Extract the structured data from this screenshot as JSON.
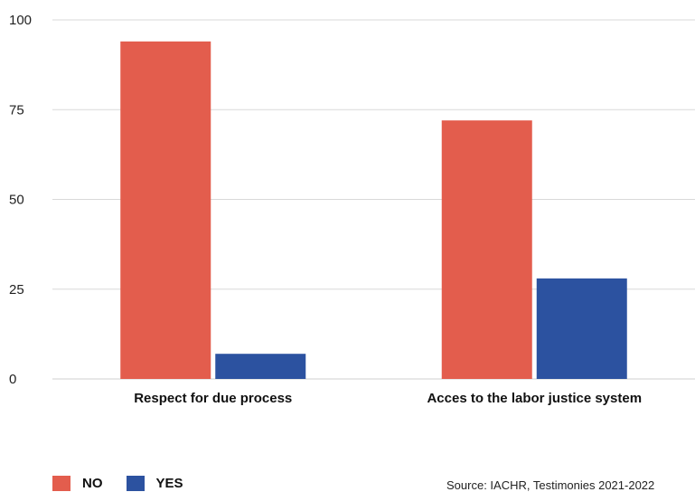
{
  "chart_data": {
    "type": "bar",
    "title": "",
    "xlabel": "",
    "ylabel": "",
    "categories": [
      "Respect for due process",
      "Acces to the labor justice system"
    ],
    "series": [
      {
        "name": "NO",
        "color": "#e35d4d",
        "values": [
          94,
          72
        ]
      },
      {
        "name": "YES",
        "color": "#2c52a0",
        "values": [
          7,
          28
        ]
      }
    ],
    "ylim": [
      0,
      100
    ],
    "yticks": [
      0,
      25,
      50,
      75,
      100
    ],
    "grid": true,
    "legend_position": "bottom-left"
  },
  "source": "Source: IACHR, Testimonies 2021-2022"
}
